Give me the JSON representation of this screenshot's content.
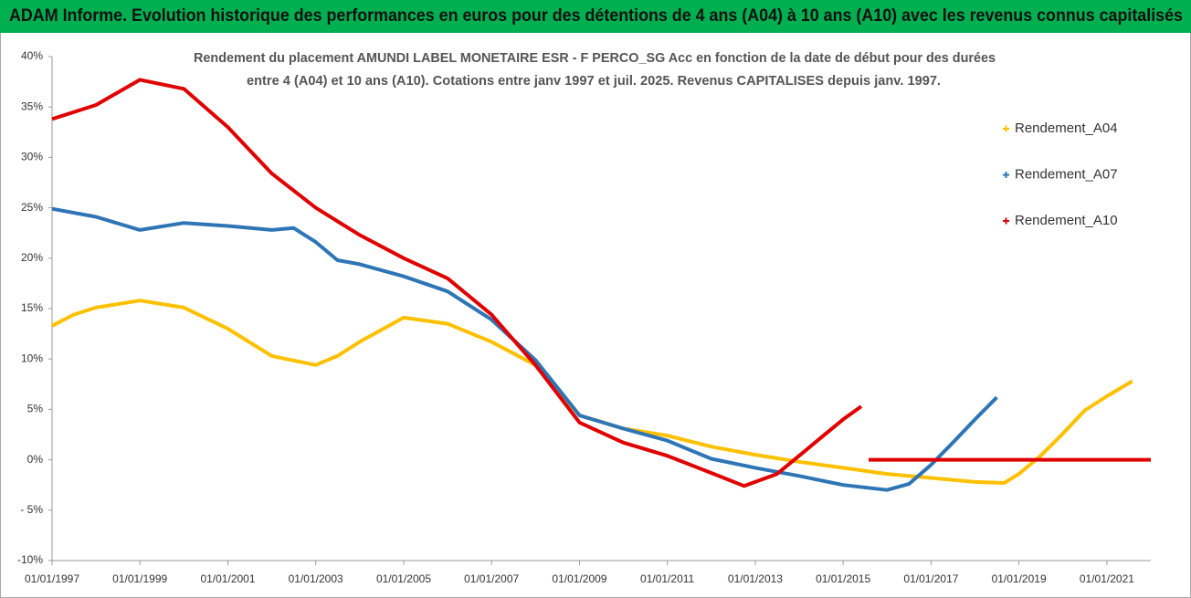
{
  "chart_data": {
    "type": "line",
    "title": "ADAM Informe. Evolution historique des performances en euros pour des détentions de 4 ans (A04) à 10 ans (A10) avec les revenus connus capitalisés",
    "subtitle": [
      "Rendement du placement AMUNDI LABEL MONETAIRE ESR - F PERCO_SG Acc en fonction de la date de début pour des durées",
      "entre 4 (A04) et 10 ans (A10). Cotations entre janv 1997 et juil. 2025. Revenus CAPITALISES depuis janv. 1997."
    ],
    "xlim": [
      "1997-01-01",
      "2022-01-01"
    ],
    "xticks": [
      {
        "value": "1997-01-01",
        "label": "01/01/1997"
      },
      {
        "value": "1999-01-01",
        "label": "01/01/1999"
      },
      {
        "value": "2001-01-01",
        "label": "01/01/2001"
      },
      {
        "value": "2003-01-01",
        "label": "01/01/2003"
      },
      {
        "value": "2005-01-01",
        "label": "01/01/2005"
      },
      {
        "value": "2007-01-01",
        "label": "01/01/2007"
      },
      {
        "value": "2009-01-01",
        "label": "01/01/2009"
      },
      {
        "value": "2011-01-01",
        "label": "01/01/2011"
      },
      {
        "value": "2013-01-01",
        "label": "01/01/2013"
      },
      {
        "value": "2015-01-01",
        "label": "01/01/2015"
      },
      {
        "value": "2017-01-01",
        "label": "01/01/2017"
      },
      {
        "value": "2019-01-01",
        "label": "01/01/2019"
      },
      {
        "value": "2021-01-01",
        "label": "01/01/2021"
      }
    ],
    "ylim": [
      -10,
      40
    ],
    "yticks": [
      {
        "value": -10,
        "label": "-10%"
      },
      {
        "value": -5,
        "label": "- 5%"
      },
      {
        "value": 0,
        "label": "0%"
      },
      {
        "value": 5,
        "label": "5%"
      },
      {
        "value": 10,
        "label": "10%"
      },
      {
        "value": 15,
        "label": "15%"
      },
      {
        "value": 20,
        "label": "20%"
      },
      {
        "value": 25,
        "label": "25%"
      },
      {
        "value": 30,
        "label": "30%"
      },
      {
        "value": 35,
        "label": "35%"
      },
      {
        "value": 40,
        "label": "40%"
      }
    ],
    "grid": false,
    "legend": "right",
    "series": [
      {
        "name": "Rendement_A04",
        "color": "#ffc000",
        "x": [
          "1997-01-01",
          "1997-07-01",
          "1998-01-01",
          "1999-01-01",
          "2000-01-01",
          "2001-01-01",
          "2002-01-01",
          "2003-01-01",
          "2003-07-01",
          "2004-01-01",
          "2005-01-01",
          "2006-01-01",
          "2007-01-01",
          "2008-01-01",
          "2009-01-01",
          "2010-01-01",
          "2011-01-01",
          "2012-01-01",
          "2013-01-01",
          "2014-01-01",
          "2015-01-01",
          "2016-01-01",
          "2017-01-01",
          "2018-01-01",
          "2018-09-01",
          "2019-01-01",
          "2019-07-01",
          "2020-01-01",
          "2020-07-01",
          "2021-01-01",
          "2021-08-01"
        ],
        "values": [
          13.3,
          14.4,
          15.1,
          15.8,
          15.1,
          13.0,
          10.3,
          9.4,
          10.3,
          11.7,
          14.1,
          13.5,
          11.7,
          9.4,
          4.4,
          3.1,
          2.4,
          1.3,
          0.5,
          -0.2,
          -0.8,
          -1.4,
          -1.8,
          -2.2,
          -2.3,
          -1.4,
          0.4,
          2.6,
          4.9,
          6.3,
          7.8
        ]
      },
      {
        "name": "Rendement_A07",
        "color": "#2e75b6",
        "x": [
          "1997-01-01",
          "1998-01-01",
          "1999-01-01",
          "2000-01-01",
          "2001-01-01",
          "2002-01-01",
          "2002-07-01",
          "2003-01-01",
          "2003-07-01",
          "2004-01-01",
          "2005-01-01",
          "2006-01-01",
          "2007-01-01",
          "2008-01-01",
          "2009-01-01",
          "2010-01-01",
          "2011-01-01",
          "2012-01-01",
          "2013-01-01",
          "2014-01-01",
          "2015-01-01",
          "2016-01-01",
          "2016-07-01",
          "2017-01-01",
          "2017-07-01",
          "2018-01-01",
          "2018-07-01"
        ],
        "values": [
          24.9,
          24.1,
          22.8,
          23.5,
          23.2,
          22.8,
          23.0,
          21.6,
          19.8,
          19.4,
          18.2,
          16.7,
          13.9,
          9.9,
          4.4,
          3.1,
          1.9,
          0.1,
          -0.8,
          -1.6,
          -2.5,
          -3.0,
          -2.4,
          -0.5,
          1.7,
          4.0,
          6.2
        ]
      },
      {
        "name": "Rendement_A10",
        "color": "#e00000",
        "x": [
          "1997-01-01",
          "1998-01-01",
          "1999-01-01",
          "2000-01-01",
          "2001-01-01",
          "2002-01-01",
          "2003-01-01",
          "2004-01-01",
          "2005-01-01",
          "2006-01-01",
          "2007-01-01",
          "2008-01-01",
          "2009-01-01",
          "2010-01-01",
          "2011-01-01",
          "2012-01-01",
          "2012-10-01",
          "2013-07-01",
          "2014-01-01",
          "2014-07-01",
          "2015-01-01",
          "2015-06-01",
          "2015-07-01",
          "2015-08-01",
          "2022-01-01"
        ],
        "values": [
          33.8,
          35.2,
          37.7,
          36.8,
          33.0,
          28.4,
          25.0,
          22.3,
          20.0,
          18.0,
          14.4,
          9.4,
          3.7,
          1.7,
          0.4,
          -1.3,
          -2.6,
          -1.4,
          0.4,
          2.2,
          4.0,
          5.3,
          null,
          0,
          0
        ]
      }
    ]
  }
}
